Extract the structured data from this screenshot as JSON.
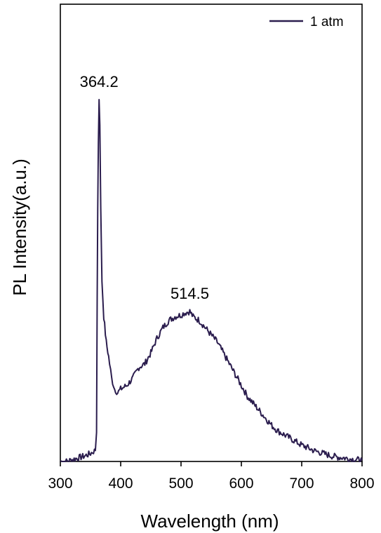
{
  "chart_data": {
    "type": "line",
    "xlabel": "Wavelength (nm)",
    "ylabel": "PL Intensity(a.u.)",
    "xlim": [
      300,
      800
    ],
    "ylim": [
      0,
      1
    ],
    "xticks": [
      300,
      400,
      500,
      600,
      700,
      800
    ],
    "yticks_shown": false,
    "grid": false,
    "legend": {
      "placement": "top-right",
      "entries": [
        "1 atm"
      ]
    },
    "colors": {
      "series": "#2b1d4e",
      "axis": "#000000"
    },
    "series": [
      {
        "name": "1 atm",
        "x": [
          300,
          310,
          320,
          330,
          340,
          350,
          355,
          358,
          360,
          361,
          362,
          363,
          364.2,
          365.5,
          367,
          369,
          372,
          376,
          380,
          385,
          390,
          395,
          400,
          410,
          420,
          430,
          440,
          450,
          460,
          470,
          480,
          490,
          500,
          505,
          514.5,
          520,
          530,
          540,
          550,
          560,
          570,
          580,
          590,
          600,
          610,
          620,
          630,
          640,
          650,
          660,
          670,
          680,
          690,
          700,
          710,
          720,
          730,
          740,
          750,
          760,
          770,
          780,
          790,
          800
        ],
        "y": [
          0.0,
          0.0,
          0.005,
          0.01,
          0.015,
          0.022,
          0.028,
          0.03,
          0.08,
          0.45,
          0.7,
          0.88,
          1.0,
          0.93,
          0.7,
          0.5,
          0.4,
          0.33,
          0.29,
          0.23,
          0.2,
          0.19,
          0.2,
          0.21,
          0.23,
          0.26,
          0.27,
          0.3,
          0.34,
          0.37,
          0.39,
          0.4,
          0.405,
          0.41,
          0.415,
          0.4,
          0.39,
          0.37,
          0.35,
          0.33,
          0.3,
          0.27,
          0.24,
          0.21,
          0.18,
          0.16,
          0.14,
          0.12,
          0.1,
          0.085,
          0.075,
          0.065,
          0.055,
          0.045,
          0.038,
          0.03,
          0.025,
          0.02,
          0.015,
          0.012,
          0.01,
          0.007,
          0.005,
          0.003
        ]
      }
    ],
    "annotations": [
      {
        "text": "364.2",
        "x": 364.2,
        "y": 1.0
      },
      {
        "text": "514.5",
        "x": 514.5,
        "y": 0.415
      }
    ]
  }
}
